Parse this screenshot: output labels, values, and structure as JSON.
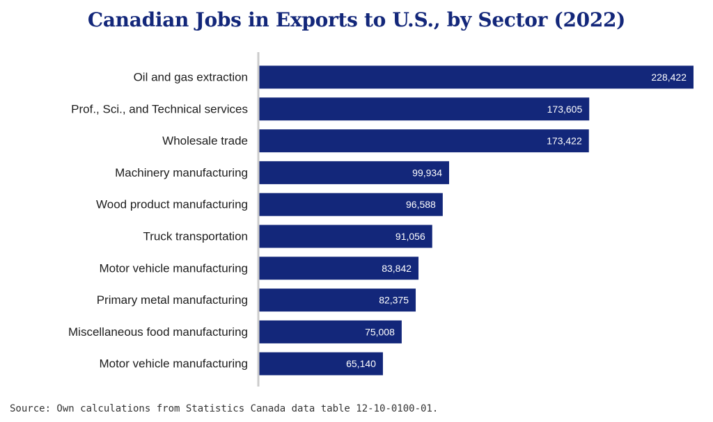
{
  "chart_data": {
    "type": "bar",
    "orientation": "horizontal",
    "title": "Canadian Jobs in Exports to U.S., by Sector (2022)",
    "categories": [
      "Oil and gas extraction",
      "Prof., Sci., and Technical services",
      "Wholesale trade",
      "Machinery manufacturing",
      "Wood product manufacturing",
      "Truck transportation",
      "Motor vehicle manufacturing",
      "Primary metal manufacturing",
      "Miscellaneous food manufacturing",
      "Motor vehicle manufacturing"
    ],
    "values": [
      228422,
      173605,
      173422,
      99934,
      96588,
      91056,
      83842,
      82375,
      75008,
      65140
    ],
    "value_labels": [
      "228,422",
      "173,605",
      "173,422",
      "99,934",
      "96,588",
      "91,056",
      "83,842",
      "82,375",
      "75,008",
      "65,140"
    ],
    "xlim": [
      0,
      228422
    ],
    "grid": false,
    "bar_color": "#13277a",
    "axis_color": "#cccccc",
    "label_color": "#ffffff"
  },
  "source": "Source: Own calculations from Statistics Canada data table 12-10-0100-01."
}
